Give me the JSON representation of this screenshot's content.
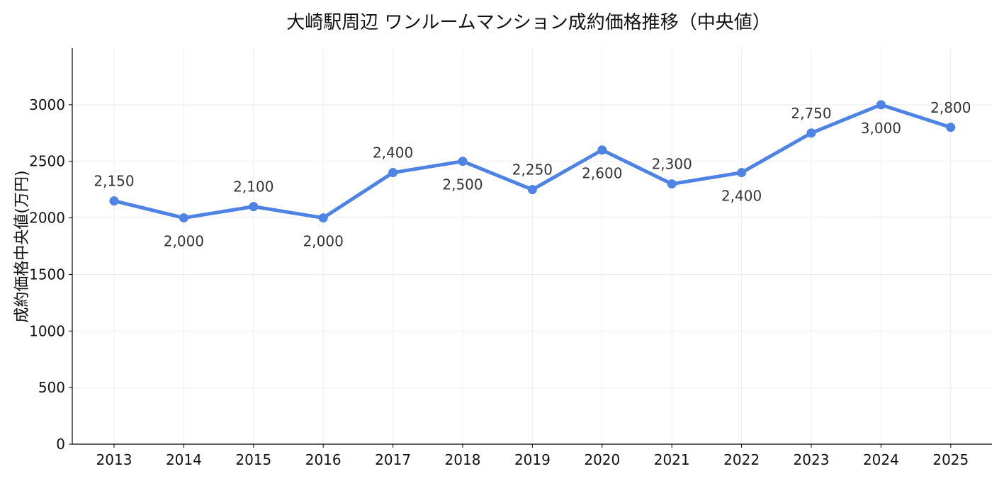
{
  "chart_data": {
    "type": "line",
    "title": "大崎駅周辺 ワンルームマンション成約価格推移（中央値）",
    "xlabel": "",
    "ylabel": "成約価格中央値(万円)",
    "categories": [
      "2013",
      "2014",
      "2015",
      "2016",
      "2017",
      "2018",
      "2019",
      "2020",
      "2021",
      "2022",
      "2023",
      "2024",
      "2025"
    ],
    "series": [
      {
        "values": [
          2150,
          2000,
          2100,
          2000,
          2400,
          2500,
          2250,
          2600,
          2300,
          2400,
          2750,
          3000,
          2800
        ],
        "data_labels": [
          "2,150",
          "2,000",
          "2,100",
          "2,000",
          "2,400",
          "2,500",
          "2,250",
          "2,600",
          "2,300",
          "2,400",
          "2,750",
          "3,000",
          "2,800"
        ],
        "label_positions": [
          "above",
          "below",
          "above",
          "below",
          "above",
          "below",
          "above",
          "below",
          "above",
          "below",
          "above",
          "below",
          "above"
        ],
        "color": "#4e83e4"
      }
    ],
    "yticks": [
      0,
      500,
      1000,
      1500,
      2000,
      2500,
      3000
    ],
    "ytick_labels": [
      "0",
      "500",
      "1000",
      "1500",
      "2000",
      "2500",
      "3000"
    ],
    "ylim": [
      0,
      3500
    ],
    "grid": true,
    "legend": "none"
  }
}
